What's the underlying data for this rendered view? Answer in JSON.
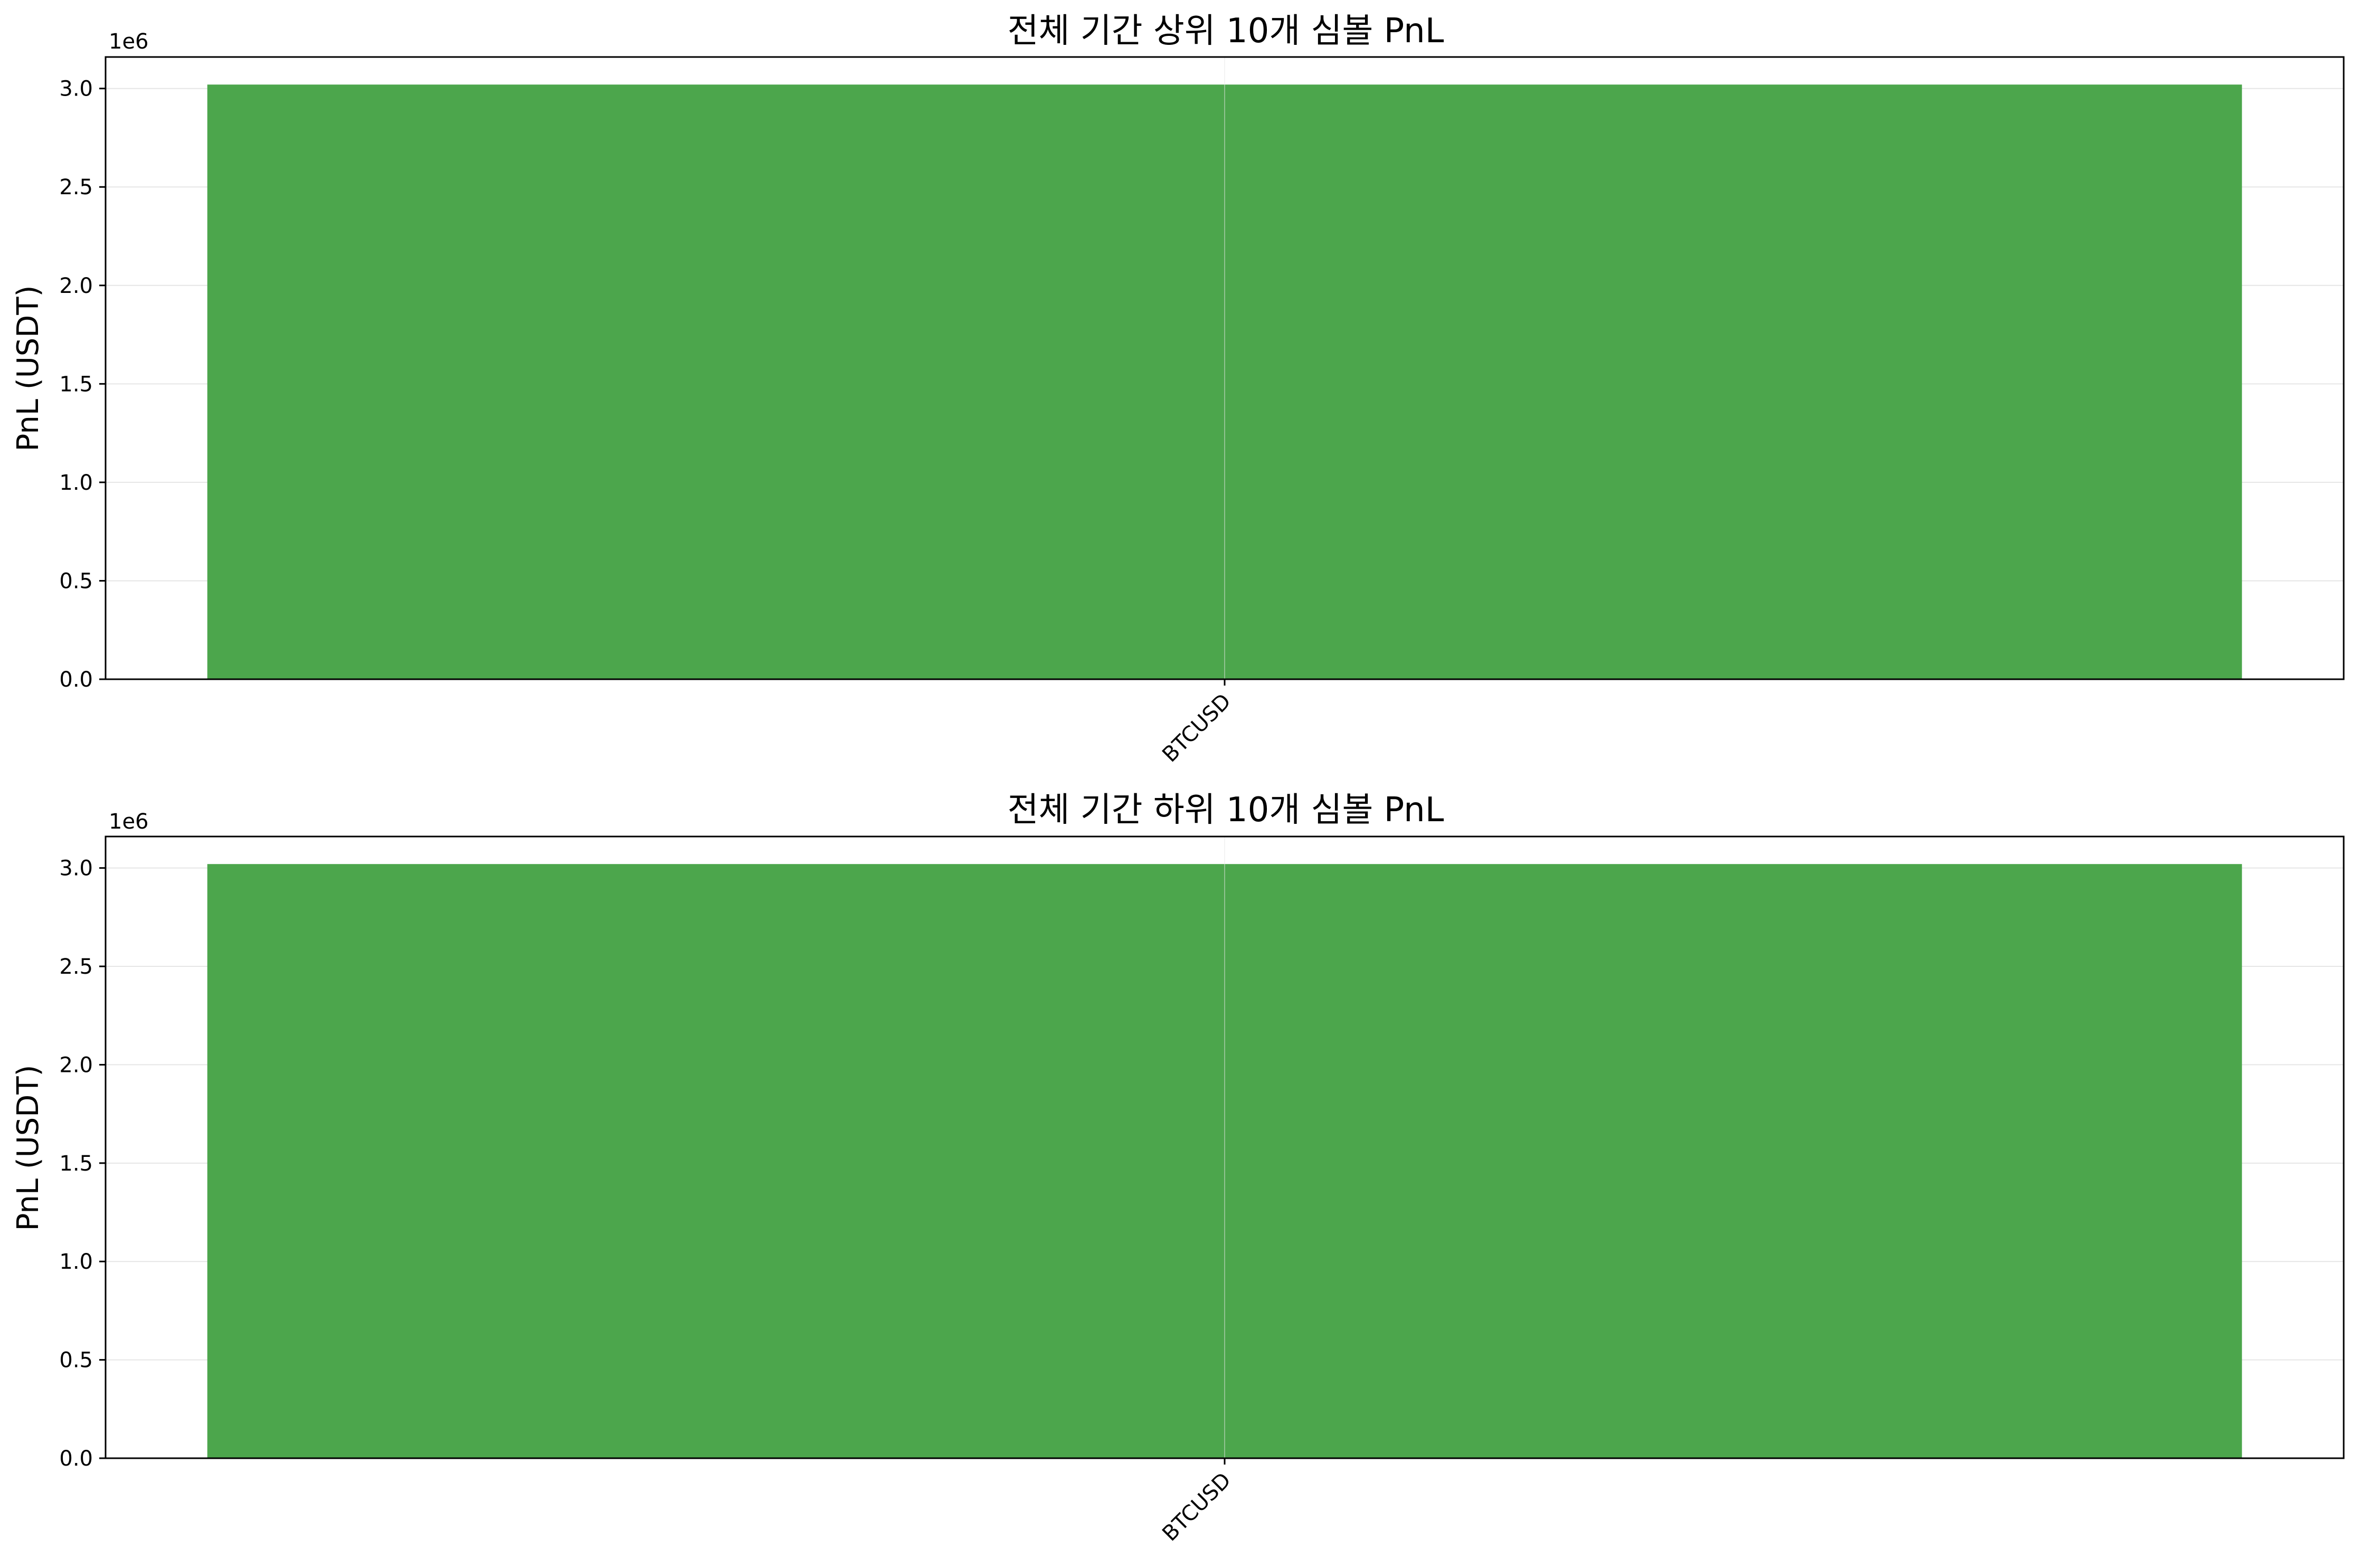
{
  "colors": {
    "bar_positive": "#4ca64c",
    "grid": "#e6e6e6",
    "axis": "#000000",
    "background": "#ffffff"
  },
  "chart_data": [
    {
      "type": "bar",
      "title": "전체 기간 상위 10개 심볼 PnL",
      "xlabel": "",
      "ylabel": "PnL (USDT)",
      "offset_text": "1e6",
      "categories": [
        "BTCUSD"
      ],
      "values": [
        3020000
      ],
      "ylim": [
        0,
        3160000
      ],
      "yticks": [
        0,
        500000,
        1000000,
        1500000,
        2000000,
        2500000,
        3000000
      ],
      "ytick_labels": [
        "0.0",
        "0.5",
        "1.0",
        "1.5",
        "2.0",
        "2.5",
        "3.0"
      ],
      "grid": true,
      "xtick_rotation": 45
    },
    {
      "type": "bar",
      "title": "전체 기간 하위 10개 심볼 PnL",
      "xlabel": "",
      "ylabel": "PnL (USDT)",
      "offset_text": "1e6",
      "categories": [
        "BTCUSD"
      ],
      "values": [
        3020000
      ],
      "ylim": [
        0,
        3160000
      ],
      "yticks": [
        0,
        500000,
        1000000,
        1500000,
        2000000,
        2500000,
        3000000
      ],
      "ytick_labels": [
        "0.0",
        "0.5",
        "1.0",
        "1.5",
        "2.0",
        "2.5",
        "3.0"
      ],
      "grid": true,
      "xtick_rotation": 45
    }
  ]
}
